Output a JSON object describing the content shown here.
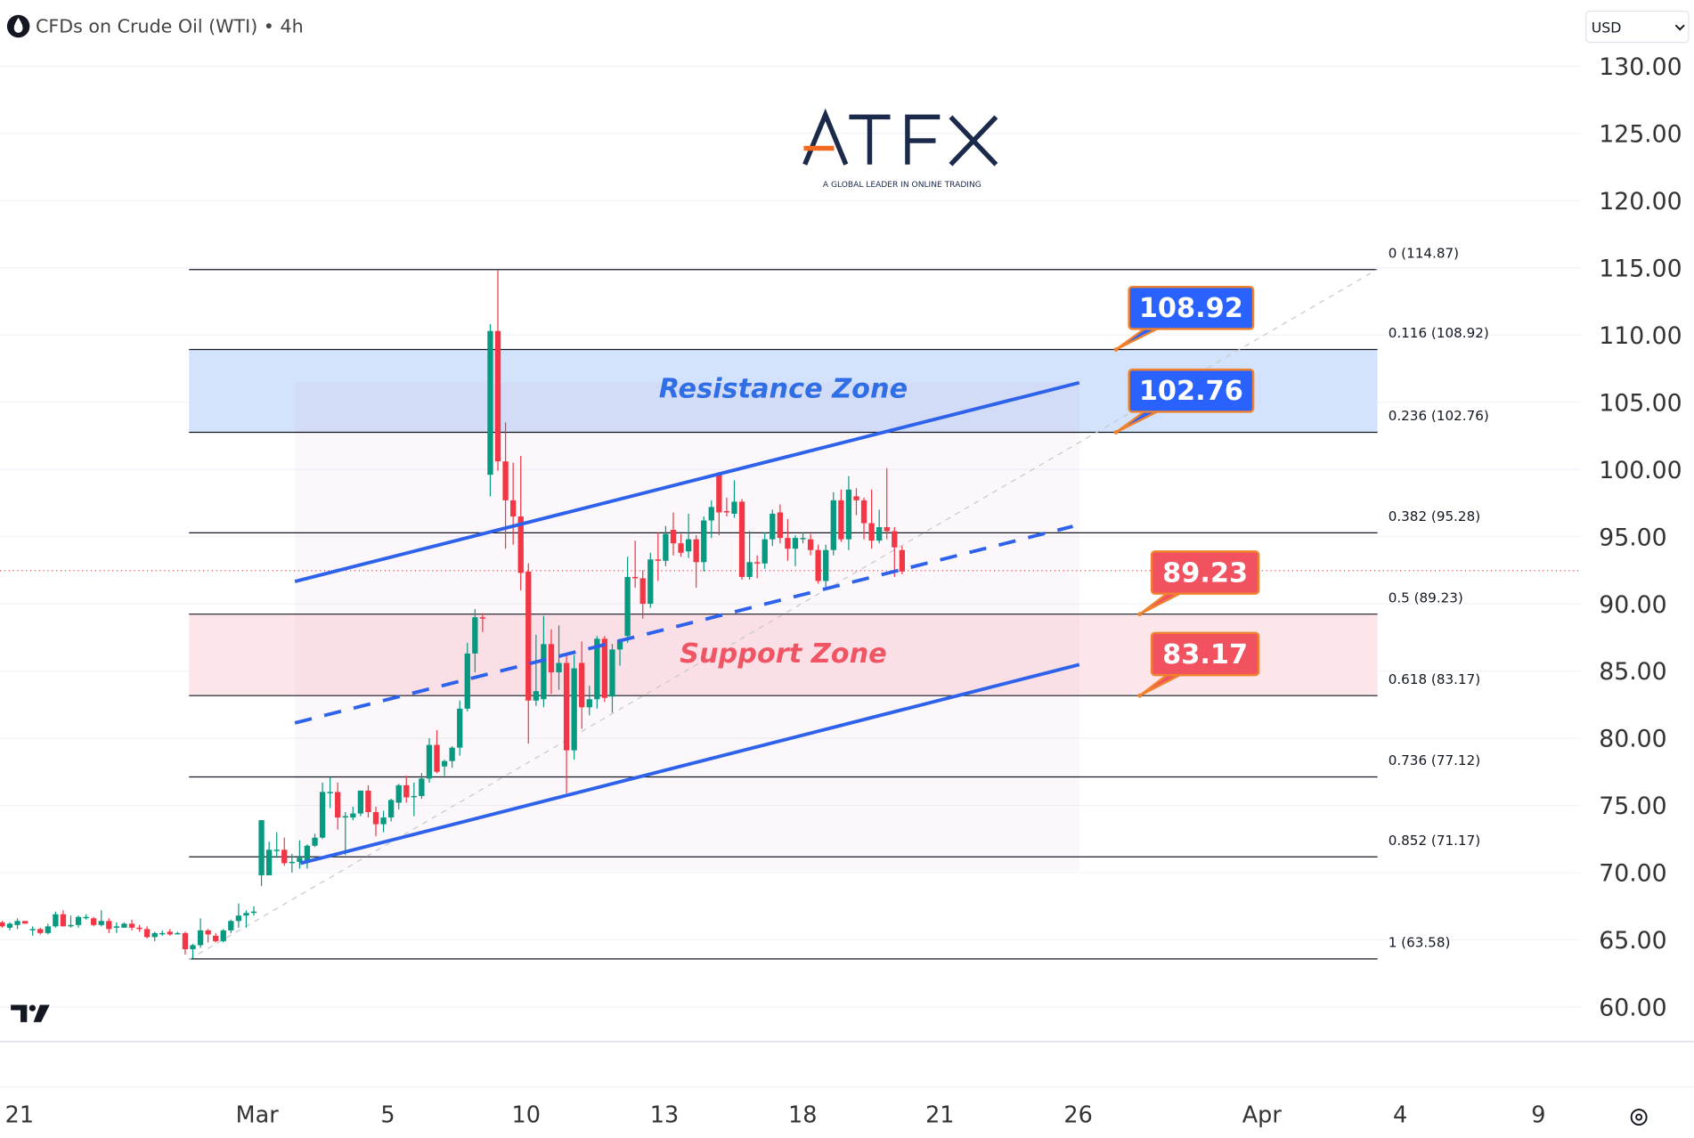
{
  "header": {
    "title": "CFDs on Crude Oil (WTI) • 4h",
    "currency": "USD",
    "symbol_icon": "oil-drop-icon"
  },
  "logo": {
    "brand": "ATFX",
    "tagline": "A GLOBAL LEADER IN ONLINE TRADING"
  },
  "watermark": "TV",
  "colors": {
    "up": "#089981",
    "down": "#f23645",
    "channel": "#2f62ea",
    "resistance_fill": "#d3e3fb",
    "support_fill": "#fde6ea",
    "resistance_text": "#2f6ee5",
    "support_text": "#f05564",
    "callout_blue": "#2962ff",
    "callout_red": "#f25260",
    "callout_border": "#f0822d"
  },
  "chart_data": {
    "type": "candlestick",
    "title": "CFDs on Crude Oil (WTI) • 4h",
    "ylim": [
      60,
      130
    ],
    "y_ticks": [
      "130.00",
      "125.00",
      "120.00",
      "115.00",
      "110.00",
      "105.00",
      "100.00",
      "95.00",
      "90.00",
      "85.00",
      "80.00",
      "75.00",
      "70.00",
      "65.00",
      "60.00"
    ],
    "x_ticks": [
      "21",
      "Mar",
      "5",
      "10",
      "13",
      "18",
      "21",
      "26",
      "Apr",
      "4",
      "9"
    ],
    "grid": true,
    "last_price": 92.4,
    "candles_ohlc": [
      [
        66.3,
        66.4,
        65.9,
        66.0
      ],
      [
        65.9,
        66.3,
        65.7,
        66.2
      ],
      [
        66.1,
        66.6,
        65.8,
        66.4
      ],
      [
        66.4,
        66.4,
        66.2,
        66.2
      ],
      [
        65.8,
        66.0,
        65.3,
        65.8
      ],
      [
        65.8,
        65.9,
        65.4,
        65.5
      ],
      [
        65.5,
        66.2,
        65.4,
        66.0
      ],
      [
        66.0,
        67.1,
        65.9,
        66.9
      ],
      [
        66.9,
        67.2,
        66.0,
        66.0
      ],
      [
        66.0,
        66.8,
        65.9,
        66.1
      ],
      [
        66.1,
        66.8,
        65.9,
        66.7
      ],
      [
        66.7,
        66.9,
        66.5,
        66.7
      ],
      [
        66.6,
        66.7,
        66.0,
        66.1
      ],
      [
        66.1,
        67.2,
        66.0,
        66.4
      ],
      [
        66.4,
        66.6,
        65.5,
        65.8
      ],
      [
        65.9,
        66.3,
        65.5,
        66.0
      ],
      [
        65.9,
        66.3,
        65.9,
        66.2
      ],
      [
        66.2,
        66.5,
        65.7,
        65.9
      ],
      [
        65.9,
        66.1,
        65.6,
        65.8
      ],
      [
        65.8,
        66.0,
        65.1,
        65.2
      ],
      [
        65.2,
        65.6,
        64.9,
        65.5
      ],
      [
        65.5,
        65.7,
        65.3,
        65.5
      ],
      [
        65.6,
        65.8,
        65.3,
        65.4
      ],
      [
        65.5,
        65.6,
        65.4,
        65.5
      ],
      [
        65.5,
        65.6,
        63.9,
        64.3
      ],
      [
        64.3,
        64.7,
        63.6,
        64.6
      ],
      [
        64.6,
        66.6,
        64.4,
        65.7
      ],
      [
        65.7,
        65.8,
        64.8,
        65.4
      ],
      [
        65.3,
        65.5,
        64.8,
        64.9
      ],
      [
        64.9,
        65.8,
        64.8,
        65.7
      ],
      [
        65.7,
        66.5,
        65.5,
        66.4
      ],
      [
        66.4,
        67.7,
        65.9,
        66.8
      ],
      [
        66.8,
        67.2,
        65.9,
        67.0
      ],
      [
        67.0,
        67.5,
        66.8,
        67.1
      ],
      [
        69.8,
        73.9,
        69.0,
        73.9
      ],
      [
        69.8,
        72.3,
        69.8,
        71.7
      ],
      [
        71.7,
        73.0,
        71.1,
        71.7
      ],
      [
        71.7,
        72.6,
        70.5,
        70.7
      ],
      [
        70.8,
        71.4,
        70.0,
        70.8
      ],
      [
        70.8,
        72.4,
        70.3,
        71.1
      ],
      [
        70.9,
        72.1,
        70.3,
        72.0
      ],
      [
        72.0,
        72.9,
        71.9,
        72.6
      ],
      [
        72.6,
        76.7,
        72.5,
        76.0
      ],
      [
        76.0,
        77.1,
        74.8,
        76.0
      ],
      [
        76.0,
        76.7,
        73.2,
        74.1
      ],
      [
        74.1,
        74.5,
        71.3,
        74.2
      ],
      [
        74.1,
        74.9,
        73.9,
        74.4
      ],
      [
        74.4,
        76.1,
        74.2,
        76.1
      ],
      [
        76.1,
        76.5,
        74.1,
        74.5
      ],
      [
        74.5,
        74.9,
        72.7,
        73.6
      ],
      [
        73.6,
        74.6,
        73.0,
        74.1
      ],
      [
        74.1,
        75.5,
        73.8,
        75.4
      ],
      [
        75.2,
        76.6,
        74.7,
        76.5
      ],
      [
        76.5,
        77.2,
        75.2,
        75.6
      ],
      [
        75.7,
        76.7,
        74.2,
        75.7
      ],
      [
        75.7,
        77.4,
        75.5,
        77.0
      ],
      [
        77.0,
        80.0,
        76.7,
        79.5
      ],
      [
        79.5,
        80.6,
        77.4,
        77.5
      ],
      [
        77.9,
        78.4,
        77.2,
        78.3
      ],
      [
        78.3,
        79.4,
        77.8,
        79.3
      ],
      [
        79.3,
        82.8,
        78.7,
        82.2
      ],
      [
        82.2,
        87.1,
        82.0,
        86.3
      ],
      [
        86.3,
        89.6,
        84.9,
        89.0
      ],
      [
        89.0,
        89.3,
        87.9,
        88.9
      ],
      [
        99.6,
        110.8,
        98.0,
        110.3
      ],
      [
        110.3,
        114.8,
        99.9,
        100.6
      ],
      [
        100.6,
        103.5,
        94.1,
        97.7
      ],
      [
        97.7,
        100.5,
        94.4,
        96.5
      ],
      [
        96.5,
        101.0,
        91.0,
        92.3
      ],
      [
        92.4,
        93.0,
        79.6,
        82.8
      ],
      [
        82.8,
        87.7,
        82.4,
        83.5
      ],
      [
        82.9,
        89.1,
        82.3,
        87.0
      ],
      [
        87.0,
        88.1,
        83.3,
        84.9
      ],
      [
        84.9,
        88.4,
        83.6,
        85.6
      ],
      [
        85.6,
        86.2,
        75.9,
        79.1
      ],
      [
        79.1,
        86.2,
        78.4,
        85.2
      ],
      [
        85.6,
        87.2,
        80.7,
        82.3
      ],
      [
        82.3,
        83.9,
        81.7,
        82.9
      ],
      [
        82.9,
        87.6,
        82.2,
        87.4
      ],
      [
        87.4,
        87.6,
        82.7,
        83.0
      ],
      [
        83.1,
        87.0,
        81.9,
        86.6
      ],
      [
        86.6,
        87.4,
        85.4,
        87.3
      ],
      [
        87.6,
        93.5,
        87.1,
        92.0
      ],
      [
        92.0,
        94.7,
        91.2,
        91.9
      ],
      [
        91.9,
        92.5,
        88.9,
        90.0
      ],
      [
        90.0,
        93.8,
        89.7,
        93.3
      ],
      [
        93.3,
        95.3,
        91.7,
        93.2
      ],
      [
        93.2,
        95.8,
        92.8,
        95.2
      ],
      [
        95.5,
        96.8,
        93.6,
        94.5
      ],
      [
        94.5,
        95.2,
        93.5,
        93.8
      ],
      [
        93.9,
        96.7,
        93.4,
        94.8
      ],
      [
        94.8,
        95.1,
        91.2,
        93.1
      ],
      [
        93.1,
        96.5,
        92.4,
        96.2
      ],
      [
        96.2,
        97.7,
        94.9,
        97.2
      ],
      [
        99.6,
        99.8,
        95.1,
        96.8
      ],
      [
        96.9,
        97.9,
        96.5,
        96.8
      ],
      [
        96.7,
        99.2,
        96.4,
        97.6
      ],
      [
        97.6,
        97.8,
        91.8,
        92.0
      ],
      [
        92.0,
        95.4,
        91.8,
        93.1
      ],
      [
        93.1,
        93.6,
        91.9,
        93.0
      ],
      [
        93.0,
        95.3,
        92.6,
        94.8
      ],
      [
        94.8,
        97.0,
        94.3,
        96.7
      ],
      [
        96.8,
        97.4,
        94.5,
        94.9
      ],
      [
        94.9,
        96.3,
        93.2,
        94.1
      ],
      [
        94.1,
        95.1,
        92.8,
        94.9
      ],
      [
        94.9,
        95.3,
        94.5,
        94.9
      ],
      [
        94.8,
        95.2,
        93.6,
        94.0
      ],
      [
        94.0,
        94.4,
        91.5,
        91.7
      ],
      [
        91.7,
        94.4,
        91.0,
        94.0
      ],
      [
        94.0,
        98.3,
        93.6,
        97.7
      ],
      [
        97.7,
        98.5,
        94.6,
        94.8
      ],
      [
        94.8,
        99.5,
        94.0,
        98.5
      ],
      [
        98.0,
        98.6,
        96.6,
        97.7
      ],
      [
        97.7,
        97.9,
        94.8,
        96.0
      ],
      [
        96.0,
        98.5,
        94.1,
        94.7
      ],
      [
        94.7,
        97.0,
        94.5,
        95.7
      ],
      [
        95.7,
        100.1,
        94.8,
        95.4
      ],
      [
        95.4,
        95.7,
        92.0,
        94.2
      ],
      [
        94.0,
        94.3,
        92.2,
        92.4
      ]
    ],
    "fib_levels": [
      {
        "ratio": 0,
        "price": 114.87,
        "label": "0 (114.87)"
      },
      {
        "ratio": 0.116,
        "price": 108.92,
        "label": "0.116 (108.92)"
      },
      {
        "ratio": 0.236,
        "price": 102.76,
        "label": "0.236 (102.76)"
      },
      {
        "ratio": 0.382,
        "price": 95.28,
        "label": "0.382 (95.28)"
      },
      {
        "ratio": 0.5,
        "price": 89.23,
        "label": "0.5 (89.23)"
      },
      {
        "ratio": 0.618,
        "price": 83.17,
        "label": "0.618 (83.17)"
      },
      {
        "ratio": 0.736,
        "price": 77.12,
        "label": "0.736 (77.12)"
      },
      {
        "ratio": 0.852,
        "price": 71.17,
        "label": "0.852 (71.17)"
      },
      {
        "ratio": 1,
        "price": 63.58,
        "label": "1 (63.58)"
      }
    ],
    "zones": [
      {
        "label": "Resistance Zone",
        "from": 102.76,
        "to": 108.92
      },
      {
        "label": "Support Zone",
        "from": 83.17,
        "to": 89.23
      }
    ],
    "callouts": [
      {
        "text": "108.92",
        "price": 108.92,
        "style": "blue"
      },
      {
        "text": "102.76",
        "price": 102.76,
        "style": "blue"
      },
      {
        "text": "89.23",
        "price": 89.23,
        "style": "red"
      },
      {
        "text": "83.17",
        "price": 83.17,
        "style": "red"
      }
    ]
  }
}
